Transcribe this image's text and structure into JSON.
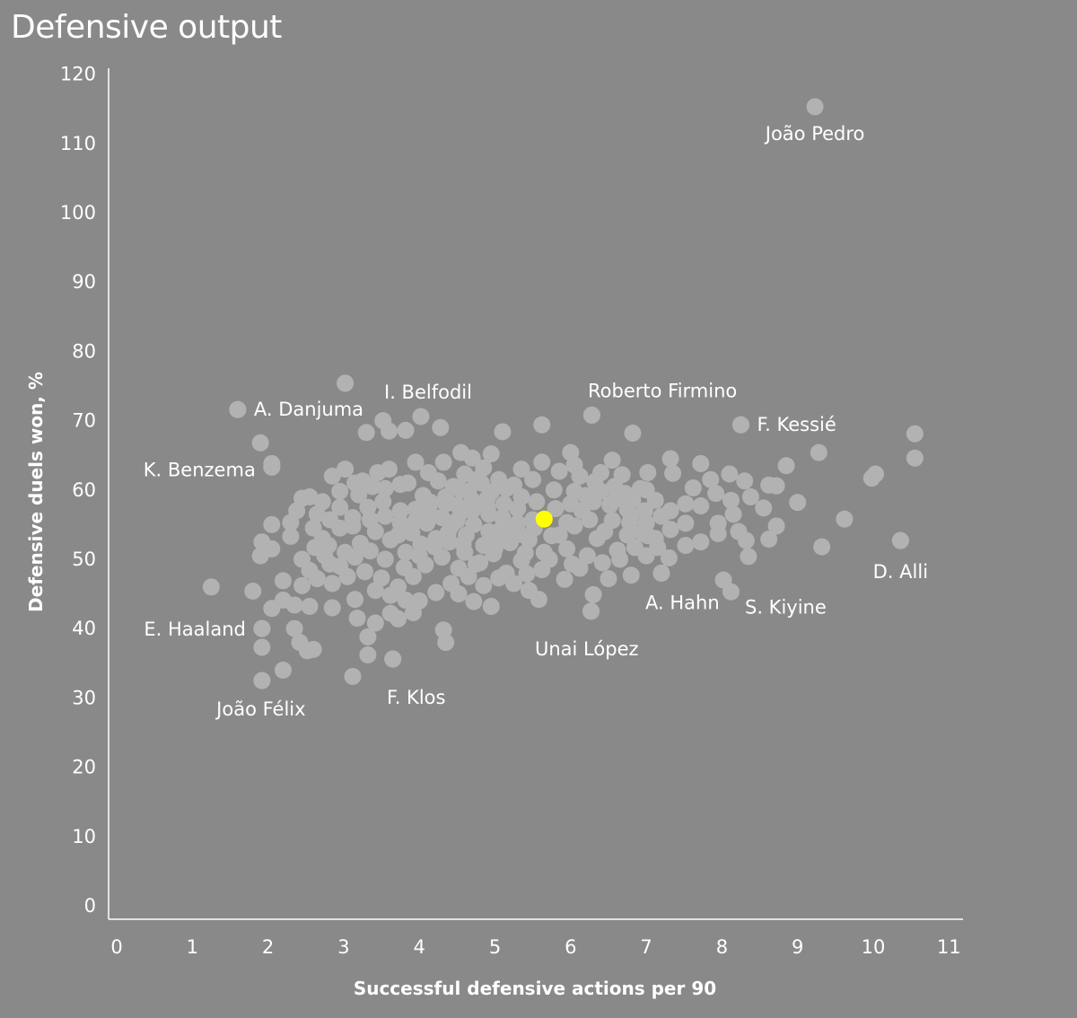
{
  "title": "Defensive output",
  "colors": {
    "background": "#898989",
    "point": "#b2b2b2",
    "highlight": "#ffff00",
    "text": "#ffffff"
  },
  "chart_data": {
    "type": "scatter",
    "title": "Defensive output",
    "xlabel": "Successful defensive actions per 90",
    "ylabel": "Defensive duels won, %",
    "xlim": [
      0,
      11
    ],
    "ylim": [
      0,
      120
    ],
    "xticks": [
      "0",
      "1",
      "2",
      "3",
      "4",
      "5",
      "6",
      "7",
      "8",
      "9",
      "10",
      "11"
    ],
    "yticks": [
      "0",
      "10",
      "20",
      "30",
      "40",
      "50",
      "60",
      "70",
      "80",
      "90",
      "100",
      "110",
      "120"
    ],
    "grid": false,
    "highlight": {
      "x": 5.65,
      "y": 55.8
    },
    "labeled_points": [
      {
        "name": "João Pedro",
        "x": 9.23,
        "y": 115.3
      },
      {
        "name": "Roberto Firmino",
        "x": 6.28,
        "y": 70.8
      },
      {
        "name": "F. Kessié",
        "x": 8.25,
        "y": 69.4
      },
      {
        "name": "I. Belfodil",
        "x": 3.02,
        "y": 75.4
      },
      {
        "name": "A. Danjuma",
        "x": 1.6,
        "y": 71.6
      },
      {
        "name": "K. Benzema",
        "x": 2.05,
        "y": 63.3
      },
      {
        "name": "D. Alli",
        "x": 10.36,
        "y": 52.7
      },
      {
        "name": "S. Kiyine",
        "x": 8.12,
        "y": 45.3
      },
      {
        "name": "A. Hahn",
        "x": 7.2,
        "y": 48.0
      },
      {
        "name": "Unai López",
        "x": 6.27,
        "y": 42.5
      },
      {
        "name": "E. Haaland",
        "x": 1.92,
        "y": 40.0
      },
      {
        "name": "F. Klos",
        "x": 3.65,
        "y": 35.6
      },
      {
        "name": "João Félix",
        "x": 1.92,
        "y": 32.5
      }
    ],
    "points": [
      [
        3.02,
        75.4
      ],
      [
        1.6,
        71.6
      ],
      [
        3.52,
        70.0
      ],
      [
        4.02,
        70.6
      ],
      [
        4.28,
        69.0
      ],
      [
        5.62,
        69.4
      ],
      [
        6.28,
        70.8
      ],
      [
        6.82,
        68.2
      ],
      [
        8.25,
        69.4
      ],
      [
        10.55,
        68.1
      ],
      [
        1.9,
        66.8
      ],
      [
        3.3,
        68.3
      ],
      [
        3.6,
        68.5
      ],
      [
        3.82,
        68.6
      ],
      [
        5.1,
        68.4
      ],
      [
        9.28,
        65.4
      ],
      [
        10.55,
        64.6
      ],
      [
        2.05,
        63.3
      ],
      [
        2.05,
        63.8
      ],
      [
        4.55,
        65.4
      ],
      [
        4.7,
        64.6
      ],
      [
        4.95,
        65.2
      ],
      [
        6.0,
        65.4
      ],
      [
        5.62,
        64.0
      ],
      [
        6.05,
        63.6
      ],
      [
        6.55,
        64.3
      ],
      [
        7.32,
        64.5
      ],
      [
        7.72,
        63.8
      ],
      [
        8.85,
        63.5
      ],
      [
        9.98,
        61.7
      ],
      [
        10.03,
        62.3
      ],
      [
        8.62,
        60.7
      ],
      [
        8.72,
        60.6
      ],
      [
        9.0,
        58.2
      ],
      [
        9.62,
        55.8
      ],
      [
        8.72,
        54.8
      ],
      [
        8.62,
        52.9
      ],
      [
        9.32,
        51.8
      ],
      [
        10.36,
        52.7
      ],
      [
        8.32,
        52.7
      ],
      [
        8.35,
        50.4
      ],
      [
        7.72,
        52.5
      ],
      [
        7.95,
        53.7
      ],
      [
        7.95,
        55.2
      ],
      [
        8.12,
        58.5
      ],
      [
        8.38,
        59.0
      ],
      [
        8.55,
        57.4
      ],
      [
        8.3,
        61.3
      ],
      [
        8.1,
        62.3
      ],
      [
        7.35,
        62.4
      ],
      [
        7.02,
        62.5
      ],
      [
        6.68,
        62.2
      ],
      [
        7.0,
        60.0
      ],
      [
        6.82,
        58.5
      ],
      [
        6.98,
        57.0
      ],
      [
        6.78,
        55.3
      ],
      [
        6.75,
        53.5
      ],
      [
        7.02,
        53.4
      ],
      [
        7.0,
        50.5
      ],
      [
        7.3,
        50.2
      ],
      [
        7.2,
        48.0
      ],
      [
        6.8,
        47.7
      ],
      [
        6.5,
        47.2
      ],
      [
        6.12,
        48.7
      ],
      [
        5.92,
        47.1
      ],
      [
        6.27,
        42.5
      ],
      [
        6.3,
        44.9
      ],
      [
        5.58,
        44.2
      ],
      [
        5.45,
        45.5
      ],
      [
        4.95,
        43.2
      ],
      [
        4.72,
        43.9
      ],
      [
        4.52,
        45.0
      ],
      [
        4.32,
        39.8
      ],
      [
        4.35,
        38.0
      ],
      [
        3.92,
        42.3
      ],
      [
        3.82,
        44.1
      ],
      [
        3.72,
        41.4
      ],
      [
        3.62,
        42.2
      ],
      [
        3.65,
        35.6
      ],
      [
        3.32,
        36.2
      ],
      [
        3.32,
        38.8
      ],
      [
        3.42,
        40.8
      ],
      [
        3.12,
        33.1
      ],
      [
        3.18,
        41.5
      ],
      [
        2.85,
        43.0
      ],
      [
        2.55,
        43.2
      ],
      [
        2.35,
        40.0
      ],
      [
        2.42,
        38.0
      ],
      [
        2.6,
        37.0
      ],
      [
        2.52,
        36.8
      ],
      [
        1.92,
        40.0
      ],
      [
        1.92,
        37.3
      ],
      [
        2.2,
        34.0
      ],
      [
        1.92,
        32.5
      ],
      [
        2.05,
        42.9
      ],
      [
        2.2,
        44.1
      ],
      [
        2.35,
        43.4
      ],
      [
        1.8,
        45.4
      ],
      [
        1.25,
        46.0
      ],
      [
        2.2,
        46.9
      ],
      [
        2.45,
        46.2
      ],
      [
        2.65,
        47.2
      ],
      [
        2.85,
        46.5
      ],
      [
        1.9,
        50.5
      ],
      [
        1.92,
        52.5
      ],
      [
        2.05,
        51.5
      ],
      [
        2.3,
        53.3
      ],
      [
        2.05,
        55.0
      ],
      [
        2.3,
        55.3
      ],
      [
        2.45,
        58.8
      ],
      [
        2.55,
        59.0
      ],
      [
        2.72,
        58.3
      ],
      [
        2.95,
        59.8
      ],
      [
        2.85,
        62.0
      ],
      [
        3.15,
        61.0
      ],
      [
        3.25,
        61.3
      ],
      [
        3.38,
        60.5
      ],
      [
        3.02,
        63.0
      ],
      [
        3.45,
        62.5
      ],
      [
        3.6,
        63.0
      ],
      [
        3.85,
        61.0
      ],
      [
        3.95,
        64.0
      ],
      [
        4.12,
        62.5
      ],
      [
        4.32,
        64.0
      ],
      [
        4.45,
        60.5
      ],
      [
        4.65,
        59.8
      ],
      [
        4.82,
        61.0
      ],
      [
        5.05,
        61.5
      ],
      [
        5.25,
        60.7
      ],
      [
        5.5,
        61.5
      ],
      [
        5.78,
        60.0
      ],
      [
        6.05,
        59.8
      ],
      [
        6.32,
        61.2
      ],
      [
        6.58,
        60.5
      ],
      [
        6.3,
        58.3
      ],
      [
        6.15,
        57.0
      ],
      [
        5.95,
        55.3
      ],
      [
        5.75,
        53.4
      ],
      [
        5.95,
        51.5
      ],
      [
        5.72,
        50.0
      ],
      [
        5.62,
        48.5
      ],
      [
        5.35,
        49.8
      ],
      [
        5.15,
        48.0
      ],
      [
        4.98,
        50.8
      ],
      [
        4.75,
        49.3
      ],
      [
        4.52,
        48.7
      ],
      [
        4.3,
        50.3
      ],
      [
        4.08,
        49.2
      ],
      [
        3.92,
        47.5
      ],
      [
        3.72,
        46.0
      ],
      [
        3.5,
        47.3
      ],
      [
        3.28,
        48.2
      ],
      [
        3.05,
        47.5
      ],
      [
        2.82,
        49.3
      ],
      [
        2.62,
        51.7
      ],
      [
        2.45,
        50.0
      ],
      [
        2.72,
        53.0
      ],
      [
        2.95,
        54.5
      ],
      [
        3.12,
        56.0
      ],
      [
        3.32,
        57.5
      ],
      [
        3.52,
        58.3
      ],
      [
        3.75,
        57.0
      ],
      [
        3.95,
        55.5
      ],
      [
        4.15,
        56.5
      ],
      [
        4.35,
        58.0
      ],
      [
        4.55,
        56.8
      ],
      [
        4.72,
        55.0
      ],
      [
        4.92,
        56.5
      ],
      [
        5.12,
        58.0
      ],
      [
        5.3,
        57.3
      ],
      [
        5.5,
        55.7
      ],
      [
        5.25,
        54.3
      ],
      [
        5.05,
        53.2
      ],
      [
        4.85,
        52.0
      ],
      [
        4.62,
        53.5
      ],
      [
        4.42,
        54.8
      ],
      [
        4.22,
        53.0
      ],
      [
        4.02,
        52.2
      ],
      [
        3.82,
        51.0
      ],
      [
        3.62,
        52.8
      ],
      [
        3.42,
        54.0
      ],
      [
        3.22,
        52.3
      ],
      [
        3.02,
        51.0
      ],
      [
        2.82,
        55.7
      ],
      [
        2.65,
        56.5
      ],
      [
        3.72,
        53.5
      ],
      [
        3.9,
        53.8
      ],
      [
        4.1,
        55.2
      ],
      [
        4.3,
        56.0
      ],
      [
        4.5,
        57.8
      ],
      [
        4.7,
        58.5
      ],
      [
        4.9,
        57.5
      ],
      [
        5.1,
        56.0
      ],
      [
        5.3,
        55.2
      ],
      [
        5.45,
        52.8
      ],
      [
        5.65,
        51.0
      ],
      [
        5.85,
        53.5
      ],
      [
        6.05,
        54.8
      ],
      [
        6.25,
        55.7
      ],
      [
        6.45,
        54.0
      ],
      [
        6.62,
        51.3
      ],
      [
        6.42,
        49.5
      ],
      [
        6.22,
        50.5
      ],
      [
        6.02,
        49.3
      ],
      [
        6.52,
        57.8
      ],
      [
        6.72,
        59.5
      ],
      [
        6.92,
        60.2
      ],
      [
        7.12,
        58.5
      ],
      [
        7.32,
        57.0
      ],
      [
        7.52,
        58.0
      ],
      [
        7.62,
        60.3
      ],
      [
        7.85,
        61.5
      ],
      [
        7.92,
        59.5
      ],
      [
        7.72,
        57.7
      ],
      [
        7.52,
        55.2
      ],
      [
        7.32,
        54.3
      ],
      [
        7.52,
        52.0
      ],
      [
        7.12,
        53.0
      ],
      [
        6.85,
        51.7
      ],
      [
        6.65,
        50.0
      ],
      [
        8.02,
        47.0
      ],
      [
        8.15,
        56.5
      ],
      [
        8.22,
        54.0
      ],
      [
        3.15,
        44.2
      ],
      [
        3.42,
        45.5
      ],
      [
        3.62,
        44.8
      ],
      [
        4.0,
        44.0
      ],
      [
        4.22,
        45.2
      ],
      [
        4.42,
        46.5
      ],
      [
        4.65,
        47.5
      ],
      [
        4.85,
        46.2
      ],
      [
        5.05,
        47.3
      ],
      [
        5.25,
        46.5
      ],
      [
        5.42,
        47.9
      ],
      [
        2.95,
        57.5
      ],
      [
        3.2,
        59.3
      ],
      [
        3.55,
        60.2
      ],
      [
        3.75,
        60.8
      ],
      [
        4.05,
        59.2
      ],
      [
        4.25,
        61.3
      ],
      [
        4.6,
        62.3
      ],
      [
        4.85,
        63.2
      ],
      [
        5.35,
        63.0
      ],
      [
        5.85,
        62.7
      ],
      [
        6.12,
        62.0
      ],
      [
        6.4,
        62.5
      ],
      [
        3.12,
        54.8
      ],
      [
        3.35,
        55.7
      ],
      [
        3.55,
        56.2
      ],
      [
        3.75,
        55.2
      ],
      [
        3.95,
        57.2
      ],
      [
        4.15,
        58.2
      ],
      [
        4.35,
        59.0
      ],
      [
        4.55,
        60.0
      ],
      [
        4.75,
        61.5
      ],
      [
        4.95,
        59.7
      ],
      [
        5.15,
        60.2
      ],
      [
        5.35,
        59.0
      ],
      [
        5.55,
        58.3
      ],
      [
        5.8,
        57.3
      ],
      [
        6.0,
        58.0
      ],
      [
        6.2,
        59.2
      ],
      [
        6.4,
        59.8
      ],
      [
        6.6,
        58.7
      ],
      [
        6.8,
        56.3
      ],
      [
        7.0,
        55.2
      ],
      [
        7.2,
        56.2
      ],
      [
        3.8,
        48.8
      ],
      [
        4.0,
        50.5
      ],
      [
        4.2,
        51.8
      ],
      [
        4.4,
        52.5
      ],
      [
        4.6,
        51.0
      ],
      [
        4.8,
        49.5
      ],
      [
        5.0,
        51.6
      ],
      [
        5.2,
        52.4
      ],
      [
        5.4,
        50.9
      ],
      [
        2.55,
        48.4
      ],
      [
        2.75,
        50.5
      ],
      [
        2.95,
        49.0
      ],
      [
        3.15,
        50.3
      ],
      [
        3.35,
        51.2
      ],
      [
        3.55,
        50.0
      ],
      [
        2.38,
        57.0
      ],
      [
        2.6,
        54.5
      ],
      [
        2.8,
        52.0
      ],
      [
        6.35,
        53.0
      ],
      [
        6.55,
        55.6
      ],
      [
        6.75,
        57.2
      ],
      [
        6.95,
        53.8
      ],
      [
        7.15,
        51.7
      ],
      [
        4.92,
        54.0
      ],
      [
        5.12,
        55.0
      ],
      [
        5.32,
        53.6
      ],
      [
        5.52,
        54.5
      ],
      [
        4.5,
        55.6
      ],
      [
        4.7,
        57.0
      ],
      [
        4.9,
        58.8
      ],
      [
        5.1,
        54.6
      ],
      [
        4.38,
        53.8
      ],
      [
        4.58,
        52.2
      ]
    ]
  }
}
